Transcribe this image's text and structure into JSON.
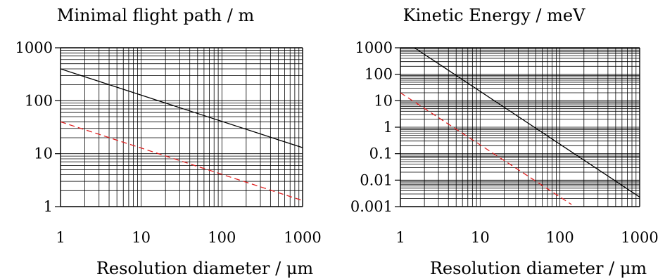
{
  "chart_data": [
    {
      "type": "line",
      "title": "Minimal flight path / m",
      "xlabel": "Resolution diameter / μm",
      "ylabel": "",
      "xscale": "log",
      "yscale": "log",
      "xlim": [
        1,
        1000
      ],
      "ylim": [
        1,
        1000
      ],
      "x_ticks": [
        "1",
        "10",
        "100",
        "1000"
      ],
      "y_ticks": [
        "1",
        "10",
        "100",
        "1000"
      ],
      "grid": true,
      "series": [
        {
          "style": "solid",
          "color": "#000000",
          "x": [
            1,
            1000
          ],
          "y": [
            400,
            13
          ]
        },
        {
          "style": "dashed",
          "color": "#e02020",
          "x": [
            1,
            1000
          ],
          "y": [
            40,
            1.3
          ]
        }
      ]
    },
    {
      "type": "line",
      "title": "Kinetic Energy / meV",
      "xlabel": "Resolution diameter / μm",
      "ylabel": "",
      "xscale": "log",
      "yscale": "log",
      "xlim": [
        1,
        1000
      ],
      "ylim": [
        0.001,
        1000
      ],
      "x_ticks": [
        "1",
        "10",
        "100",
        "1000"
      ],
      "y_ticks": [
        "0.001",
        "0.01",
        "0.1",
        "1",
        "10",
        "100",
        "1000"
      ],
      "grid": true,
      "series": [
        {
          "style": "solid",
          "color": "#000000",
          "x": [
            1.5,
            1000
          ],
          "y": [
            1000,
            0.0023
          ]
        },
        {
          "style": "dashed",
          "color": "#e02020",
          "x": [
            1,
            140
          ],
          "y": [
            20,
            0.0012
          ]
        }
      ]
    }
  ]
}
